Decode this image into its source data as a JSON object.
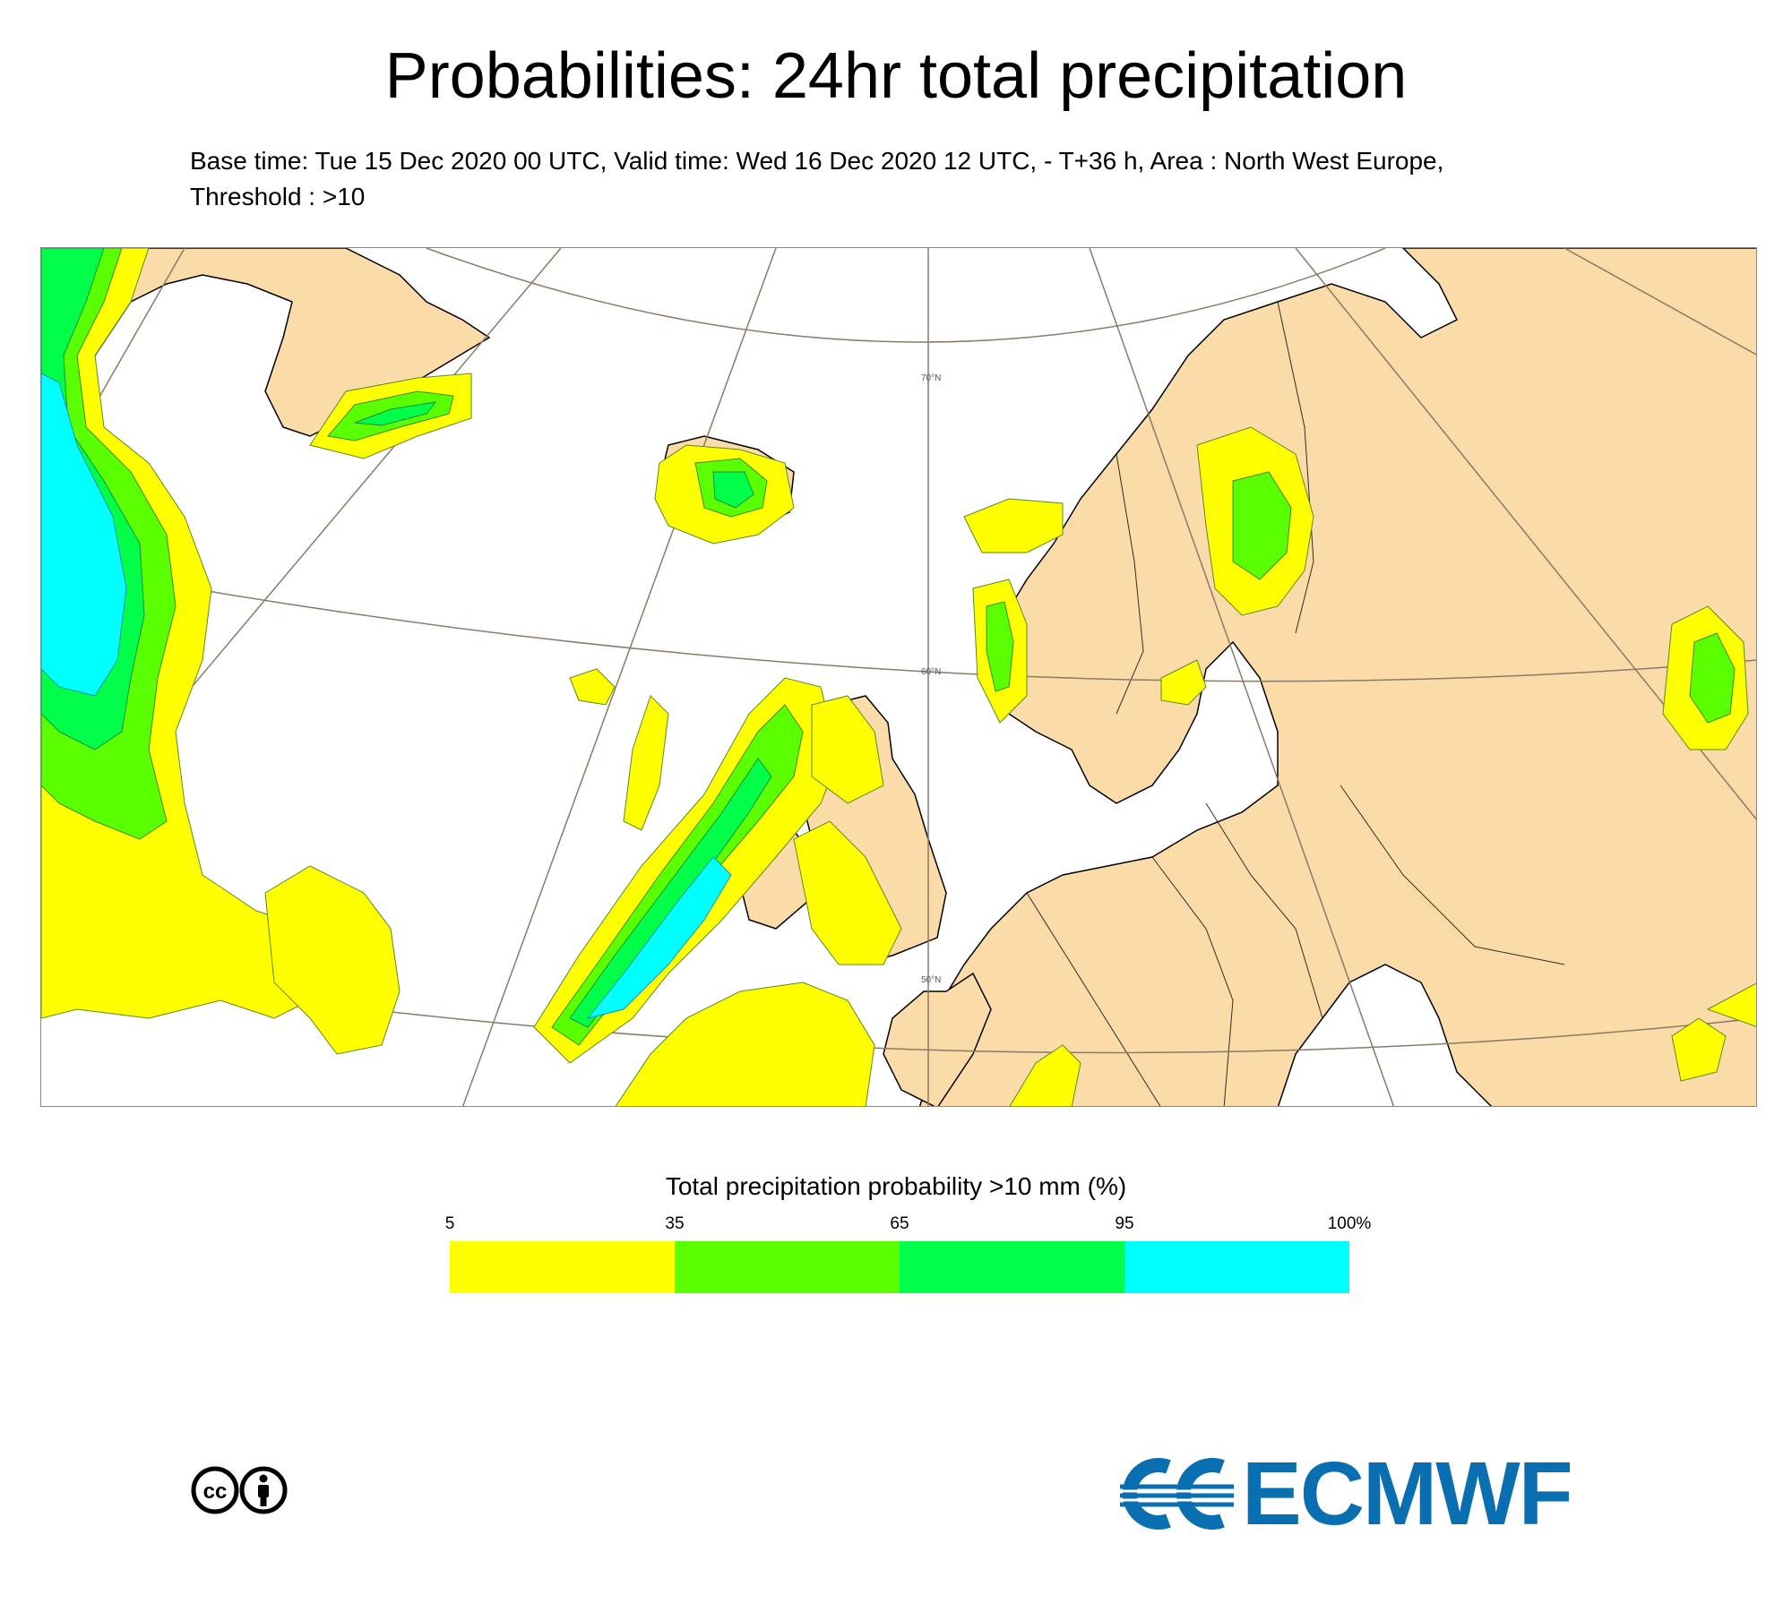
{
  "title": "Probabilities: 24hr total precipitation",
  "subtitle_line1": "Base time: Tue 15 Dec 2020 00 UTC, Valid time: Wed 16 Dec 2020 12 UTC, - T+36 h, Area : North West Europe,",
  "subtitle_line2": "Threshold : >10",
  "map": {
    "latitude_labels": [
      "70°N",
      "60°N",
      "50°N"
    ],
    "land_color": "#fbdca9",
    "sea_color": "#ffffff"
  },
  "legend": {
    "title": "Total precipitation probability >10 mm (%)",
    "ticks": [
      "5",
      "35",
      "65",
      "95",
      "100%"
    ],
    "colors": [
      "#ffff00",
      "#5aff00",
      "#00ff48",
      "#00ffff"
    ]
  },
  "footer": {
    "cc_icon": "creative-commons-by-icon",
    "brand": "ECMWF",
    "brand_color": "#0a6fb0"
  }
}
